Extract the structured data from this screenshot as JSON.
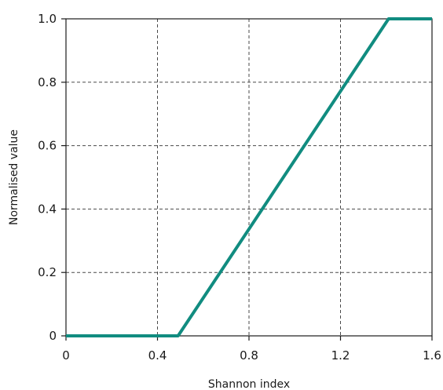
{
  "chart_data": {
    "type": "line",
    "title": "",
    "xlabel": "Shannon index",
    "ylabel": "Normalised value",
    "xlim": [
      0,
      1.6
    ],
    "ylim": [
      0,
      1.0
    ],
    "grid": true,
    "x_ticks": [
      {
        "value": 0,
        "label": "0"
      },
      {
        "value": 0.4,
        "label": "0.4"
      },
      {
        "value": 0.8,
        "label": "0.8"
      },
      {
        "value": 1.2,
        "label": "1.2"
      },
      {
        "value": 1.6,
        "label": "1.6"
      }
    ],
    "y_ticks": [
      {
        "value": 0,
        "label": "0"
      },
      {
        "value": 0.2,
        "label": "0.2"
      },
      {
        "value": 0.4,
        "label": "0.4"
      },
      {
        "value": 0.6,
        "label": "0.6"
      },
      {
        "value": 0.8,
        "label": "0.8"
      },
      {
        "value": 1.0,
        "label": "1.0"
      }
    ],
    "series": [
      {
        "color": "#118c80",
        "x": [
          0,
          0.49,
          1.41,
          1.6
        ],
        "y": [
          0,
          0,
          1.0,
          1.0
        ]
      }
    ]
  }
}
